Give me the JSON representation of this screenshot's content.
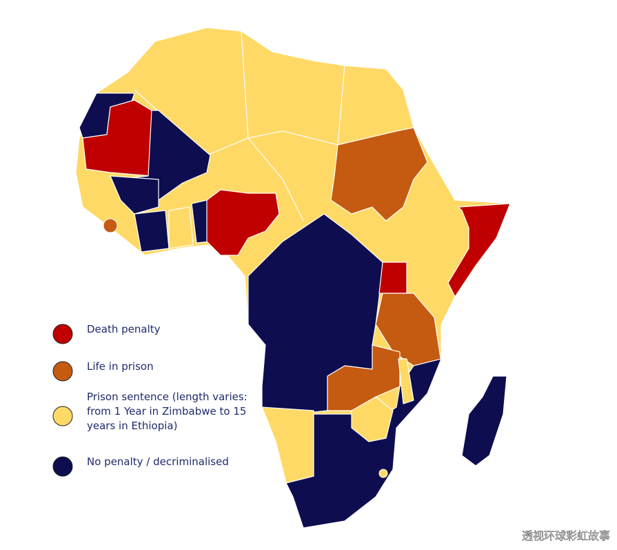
{
  "legend": {
    "items": [
      {
        "label_lines": [
          "Death penalty"
        ],
        "color": "#c00000"
      },
      {
        "label_lines": [
          "Life  in prison"
        ],
        "color": "#c55a11"
      },
      {
        "label_lines": [
          "Prison sentence (length varies:",
          "from 1 Year in Zimbabwe to 15",
          "years in Ethiopia)"
        ],
        "color": "#ffd966"
      },
      {
        "label_lines": [
          "No penalty / decriminalised"
        ],
        "color": "#0d0d4f"
      }
    ]
  },
  "watermark": "透视环球彩虹故事"
}
